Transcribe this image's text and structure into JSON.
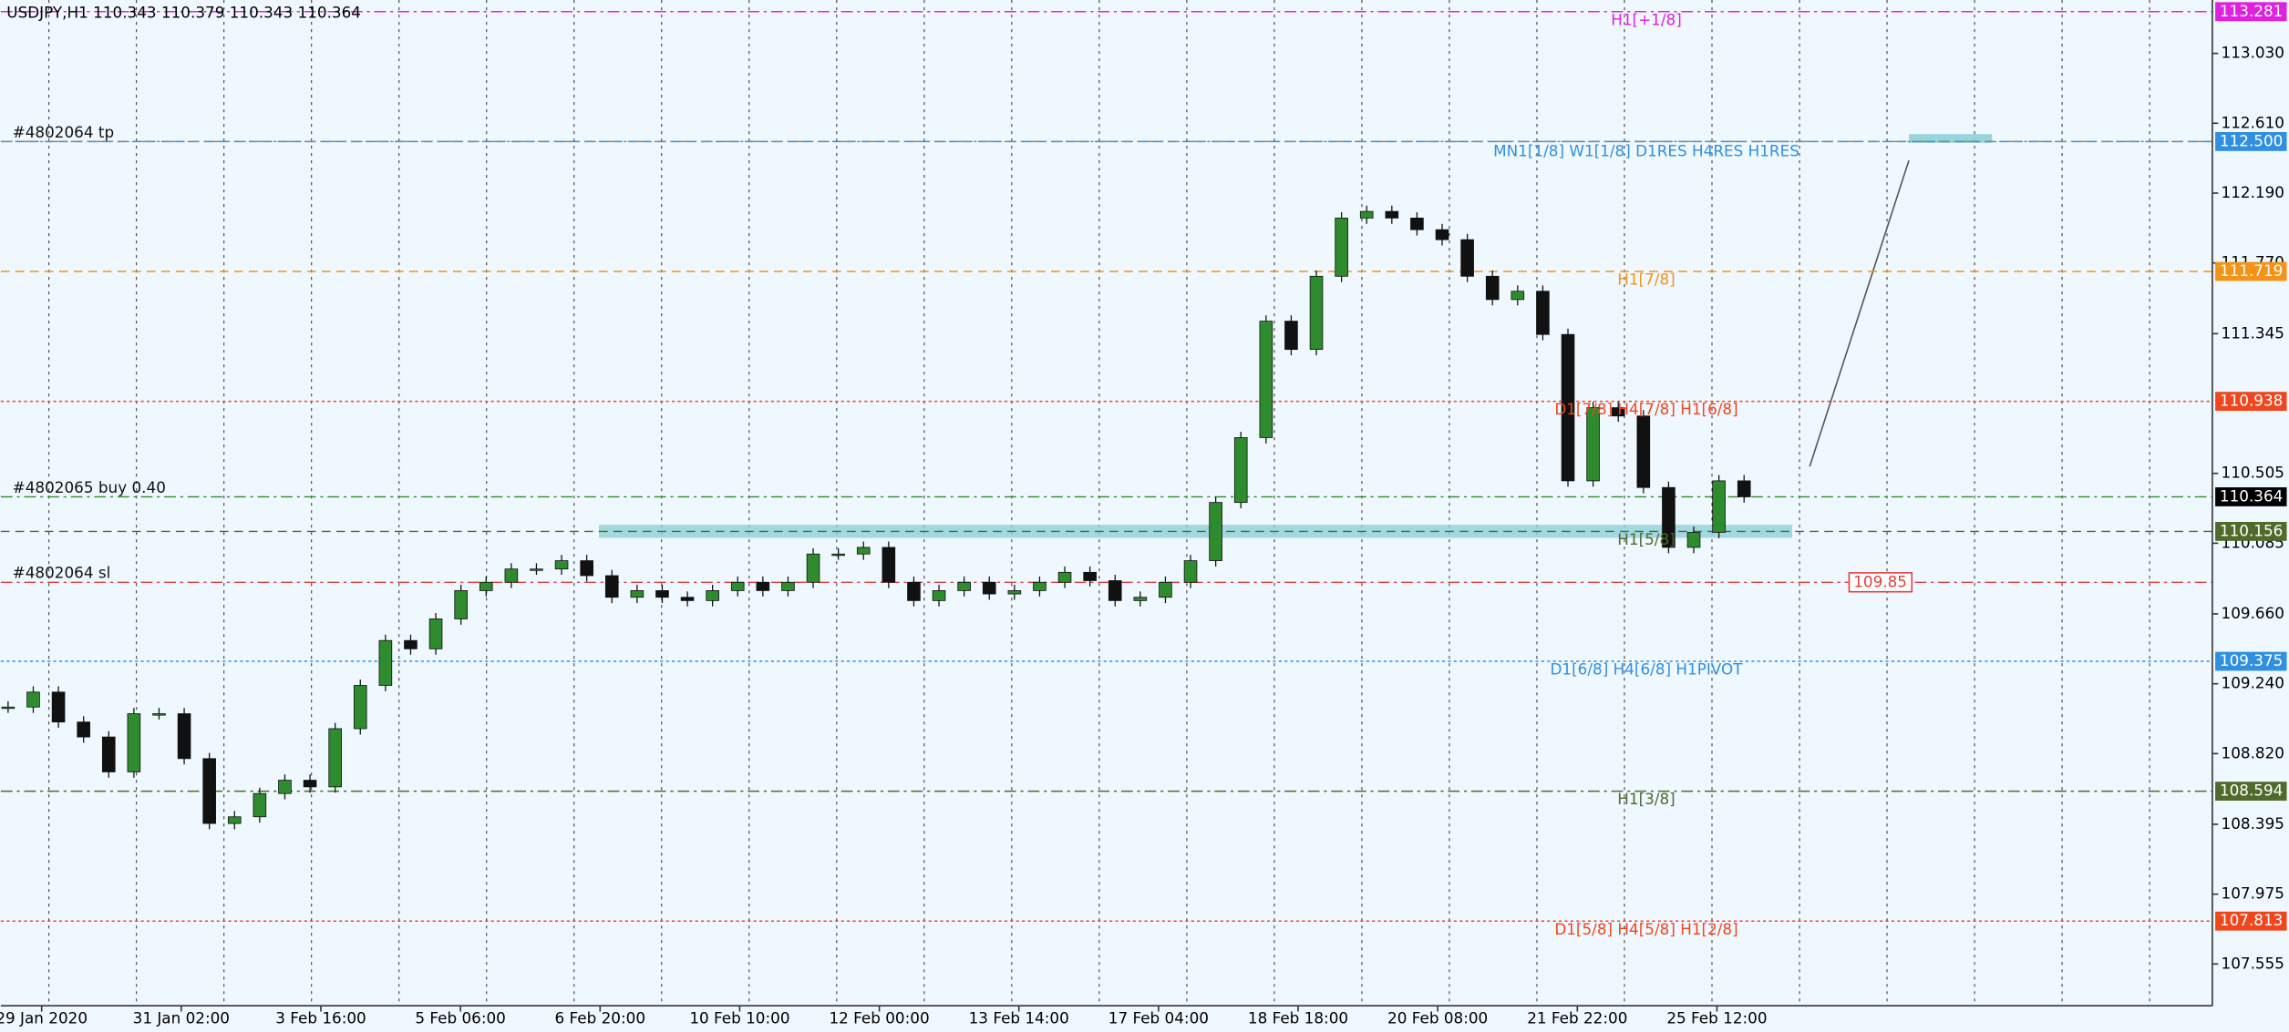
{
  "chart_data": {
    "type": "candlestick",
    "title": "USDJPY,H1  110.343 110.379 110.343 110.364",
    "categories": [
      "29 Jan 2020",
      "31 Jan 02:00",
      "3 Feb 16:00",
      "5 Feb 06:00",
      "6 Feb 20:00",
      "10 Feb 10:00",
      "12 Feb 00:00",
      "13 Feb 14:00",
      "17 Feb 04:00",
      "18 Feb 18:00",
      "20 Feb 08:00",
      "21 Feb 22:00",
      "25 Feb 12:00"
    ],
    "close": [
      109.1,
      109.19,
      109.01,
      108.92,
      108.71,
      109.06,
      109.06,
      108.79,
      108.4,
      108.44,
      108.58,
      108.66,
      108.62,
      108.97,
      109.23,
      109.5,
      109.45,
      109.63,
      109.8,
      109.85,
      109.93,
      109.93,
      109.98,
      109.89,
      109.76,
      109.8,
      109.76,
      109.74,
      109.8,
      109.85,
      109.8,
      109.85,
      110.02,
      110.02,
      110.06,
      109.85,
      109.74,
      109.8,
      109.85,
      109.78,
      109.8,
      109.85,
      109.91,
      109.86,
      109.74,
      109.76,
      109.85,
      109.98,
      110.33,
      110.72,
      111.42,
      111.25,
      111.69,
      112.04,
      112.08,
      112.04,
      111.97,
      111.91,
      111.69,
      111.55,
      111.6,
      111.34,
      110.46,
      110.9,
      110.85,
      110.42,
      110.06,
      110.15,
      110.46,
      110.364
    ],
    "bull_color": "#2e8b2e",
    "bear_color": "#111111",
    "ylim": [
      107.304,
      113.351
    ],
    "yticks": [
      {
        "value": 113.03,
        "label": "113.030"
      },
      {
        "value": 112.61,
        "label": "112.610"
      },
      {
        "value": 112.19,
        "label": "112.190"
      },
      {
        "value": 111.77,
        "label": "111.770"
      },
      {
        "value": 111.345,
        "label": "111.345"
      },
      {
        "value": 110.505,
        "label": "110.505"
      },
      {
        "value": 110.085,
        "label": "110.085"
      },
      {
        "value": 109.66,
        "label": "109.660"
      },
      {
        "value": 109.24,
        "label": "109.240"
      },
      {
        "value": 108.82,
        "label": "108.820"
      },
      {
        "value": 108.395,
        "label": "108.395"
      },
      {
        "value": 107.975,
        "label": "107.975"
      },
      {
        "value": 107.555,
        "label": "107.555"
      }
    ],
    "grid": true,
    "levels": [
      {
        "value": 113.281,
        "text": "H1[+1/8]",
        "color": "#e020e0",
        "style": "dashdot"
      },
      {
        "value": {
          "value": 112.5,
          "label": "112.500"
        },
        "text": "MN1[1/8] W1[1/8] D1RES H4RES H1RES",
        "color": "#2f8fe0",
        "style": "dash"
      },
      {
        "value": 111.719,
        "text": "H1[7/8]",
        "color": "#f39317",
        "style": "dash"
      },
      {
        "value": 110.938,
        "text": "D1[7/8] H4[7/8] H1[6/8]",
        "color": "#f0461e",
        "style": "dot"
      },
      {
        "value": 110.156,
        "text": "H1[5/8]",
        "color": "#4f6a2a",
        "style": "dash"
      },
      {
        "value": 109.375,
        "text": "D1[6/8] H4[6/8] H1PIVOT",
        "color": "#2f8fe0",
        "style": "dot"
      },
      {
        "value": 108.594,
        "text": "H1[3/8]",
        "color": "#4f6a2a",
        "style": "dashdot"
      },
      {
        "value": 107.813,
        "text": "D1[5/8] H4[5/8] H1[2/8]",
        "color": "#f0461e",
        "style": "dot"
      }
    ],
    "current_price": 110.364,
    "orders": [
      {
        "text": "#4802064 tp",
        "value": {
          "value": 112.5,
          "label": "112.500"
        },
        "color": "#888888"
      },
      {
        "text": "#4802065 buy 0.40",
        "value": 110.364,
        "color": "#2e8b2e"
      },
      {
        "text": "#4802064 sl",
        "value": 109.85,
        "color": "#e04040"
      }
    ]
  }
}
